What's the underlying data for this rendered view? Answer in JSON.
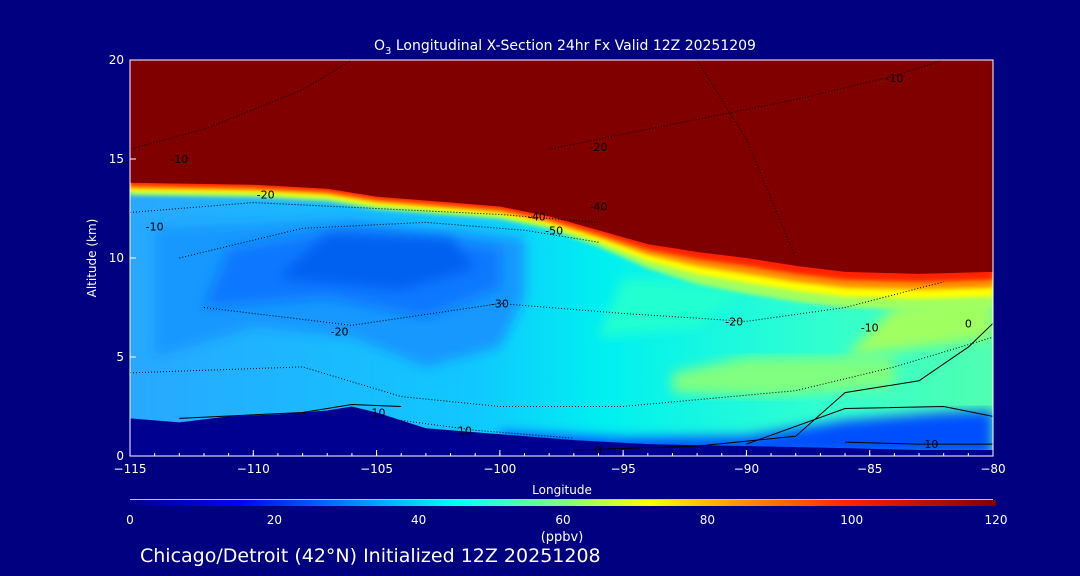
{
  "chart_data": {
    "type": "heatmap",
    "title": "O3 Longitudinal X-Section 24hr  Fx Valid 12Z 20251209",
    "title_parts": {
      "species": "O",
      "subscript": "3",
      "rest": " Longitudinal X-Section 24hr  Fx Valid 12Z 20251209"
    },
    "xlabel": "Longitude",
    "ylabel": "Altitude (km)",
    "xlim": [
      -115,
      -80
    ],
    "ylim": [
      0,
      20
    ],
    "xticks": [
      -115,
      -110,
      -105,
      -100,
      -95,
      -90,
      -85,
      -80
    ],
    "xtick_labels": [
      "−115",
      "−110",
      "−105",
      "−100",
      "−95",
      "−90",
      "−85",
      "−80"
    ],
    "yticks": [
      0,
      5,
      10,
      15,
      20
    ],
    "ytick_labels": [
      "0",
      "5",
      "10",
      "15",
      "20"
    ],
    "colorbar": {
      "label": "(ppbv)",
      "range": [
        0,
        120
      ],
      "ticks": [
        0,
        20,
        40,
        60,
        80,
        100,
        120
      ],
      "tick_labels": [
        "0",
        "20",
        "40",
        "60",
        "80",
        "100",
        "120"
      ],
      "stops": [
        [
          0,
          "#000090"
        ],
        [
          15,
          "#0000ff"
        ],
        [
          30,
          "#0080ff"
        ],
        [
          45,
          "#00ffff"
        ],
        [
          60,
          "#80ff80"
        ],
        [
          72,
          "#ffff00"
        ],
        [
          85,
          "#ff9000"
        ],
        [
          100,
          "#ff2000"
        ],
        [
          120,
          "#800000"
        ]
      ]
    },
    "tropopause": [
      [
        -115,
        13.8
      ],
      [
        -110,
        13.7
      ],
      [
        -107,
        13.5
      ],
      [
        -105,
        13.1
      ],
      [
        -102,
        12.8
      ],
      [
        -100,
        12.6
      ],
      [
        -98,
        12.1
      ],
      [
        -96,
        11.4
      ],
      [
        -94,
        10.7
      ],
      [
        -92,
        10.3
      ],
      [
        -90,
        10.0
      ],
      [
        -88,
        9.6
      ],
      [
        -86,
        9.3
      ],
      [
        -83,
        9.2
      ],
      [
        -80,
        9.3
      ]
    ],
    "terrain": [
      [
        -115,
        1.9
      ],
      [
        -113,
        1.7
      ],
      [
        -111,
        2.0
      ],
      [
        -109,
        2.1
      ],
      [
        -107,
        2.3
      ],
      [
        -106,
        2.5
      ],
      [
        -105,
        2.2
      ],
      [
        -103,
        1.4
      ],
      [
        -100,
        1.1
      ],
      [
        -97,
        0.8
      ],
      [
        -94,
        0.6
      ],
      [
        -90,
        0.5
      ],
      [
        -86,
        0.4
      ],
      [
        -83,
        0.3
      ],
      [
        -80,
        0.3
      ]
    ],
    "contour_labels": [
      {
        "text": "-10",
        "lon": -113,
        "alt": 15
      },
      {
        "text": "-20",
        "lon": -109.5,
        "alt": 13.2
      },
      {
        "text": "-10",
        "lon": -114,
        "alt": 11.6
      },
      {
        "text": "-40",
        "lon": -98.5,
        "alt": 12.1
      },
      {
        "text": "-50",
        "lon": -97.8,
        "alt": 11.4
      },
      {
        "text": "-40",
        "lon": -96,
        "alt": 12.6
      },
      {
        "text": "-20",
        "lon": -96,
        "alt": 15.6
      },
      {
        "text": "-10",
        "lon": -84,
        "alt": 19.1
      },
      {
        "text": "-30",
        "lon": -100,
        "alt": 7.7
      },
      {
        "text": "-20",
        "lon": -106.5,
        "alt": 6.3
      },
      {
        "text": "-20",
        "lon": -90.5,
        "alt": 6.8
      },
      {
        "text": "-10",
        "lon": -85,
        "alt": 6.5
      },
      {
        "text": "0",
        "lon": -81,
        "alt": 6.7
      },
      {
        "text": "-10",
        "lon": -105,
        "alt": 2.2
      },
      {
        "text": "-10",
        "lon": -101.5,
        "alt": 1.3
      },
      {
        "text": "0",
        "lon": -96,
        "alt": 0.3
      },
      {
        "text": "10",
        "lon": -82.5,
        "alt": 0.6
      }
    ]
  },
  "footer": "Chicago/Detroit (42°N) Initialized 12Z 20251208"
}
